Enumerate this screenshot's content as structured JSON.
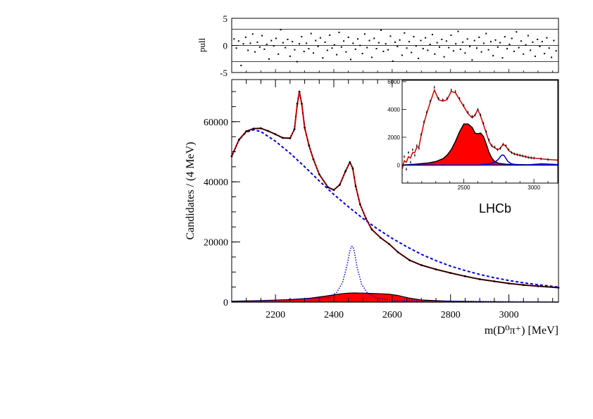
{
  "chart_data": [
    {
      "id": "main",
      "type": "line",
      "xlabel": "m(D⁰π⁺) [MeV]",
      "ylabel": "Candidates / (4 MeV)",
      "xlim": [
        2050,
        3170
      ],
      "ylim": [
        0,
        74000
      ],
      "xticks": [
        2200,
        2400,
        2600,
        2800,
        3000
      ],
      "yticks": [
        0,
        20000,
        40000,
        60000
      ],
      "annotation": "LHCb",
      "colors": {
        "total": "#cc0000",
        "background": "#0000dd",
        "resonance": "#0000cc",
        "broad_fill": "#ff0000",
        "data": "#000000"
      },
      "series": [
        {
          "role": "data",
          "style": "points",
          "x": [
            2050,
            2075,
            2100,
            2125,
            2150,
            2175,
            2200,
            2225,
            2250,
            2265,
            2275,
            2282,
            2290,
            2300,
            2315,
            2330,
            2350,
            2380,
            2400,
            2420,
            2440,
            2455,
            2465,
            2475,
            2490,
            2510,
            2530,
            2560,
            2590,
            2620,
            2660,
            2700,
            2750,
            2800,
            2850,
            2900,
            2950,
            3000,
            3050,
            3100,
            3170
          ],
          "y": [
            48500,
            54000,
            56800,
            57700,
            57800,
            56900,
            55800,
            54600,
            54500,
            57500,
            66000,
            70000,
            66000,
            58000,
            52000,
            47500,
            42500,
            38200,
            37300,
            39000,
            43500,
            46500,
            44500,
            38500,
            32500,
            27800,
            24200,
            21400,
            19300,
            16600,
            13900,
            12300,
            10900,
            9700,
            8600,
            7600,
            6900,
            6200,
            5700,
            5300,
            4800
          ]
        },
        {
          "role": "total_fit",
          "style": "solid",
          "x": [
            2050,
            2075,
            2100,
            2125,
            2150,
            2175,
            2200,
            2225,
            2250,
            2265,
            2275,
            2282,
            2290,
            2300,
            2315,
            2330,
            2350,
            2380,
            2400,
            2420,
            2440,
            2455,
            2465,
            2475,
            2490,
            2510,
            2530,
            2560,
            2590,
            2620,
            2660,
            2700,
            2750,
            2800,
            2850,
            2900,
            2950,
            3000,
            3050,
            3100,
            3170
          ],
          "y": [
            48500,
            54000,
            56800,
            57700,
            57800,
            56900,
            55800,
            54600,
            54500,
            57500,
            66000,
            70000,
            66000,
            58000,
            52000,
            47500,
            42500,
            38200,
            37300,
            39000,
            43500,
            46500,
            44500,
            38500,
            32500,
            27800,
            24200,
            21400,
            19300,
            16600,
            13900,
            12300,
            10900,
            9700,
            8600,
            7600,
            6900,
            6200,
            5700,
            5300,
            4800
          ]
        },
        {
          "role": "background",
          "style": "dashed",
          "x": [
            2050,
            2075,
            2100,
            2125,
            2150,
            2200,
            2250,
            2300,
            2350,
            2400,
            2450,
            2500,
            2550,
            2600,
            2650,
            2700,
            2750,
            2800,
            2850,
            2900,
            2950,
            3000,
            3050,
            3100,
            3170
          ],
          "y": [
            48500,
            54000,
            56500,
            57300,
            56700,
            53500,
            49500,
            45000,
            40300,
            35800,
            31700,
            27800,
            24300,
            21200,
            18400,
            15900,
            13800,
            12000,
            10500,
            9200,
            8100,
            7200,
            6400,
            5800,
            5000
          ]
        },
        {
          "role": "narrow_resonance",
          "style": "dotted",
          "x": [
            2050,
            2380,
            2410,
            2430,
            2445,
            2455,
            2460,
            2465,
            2470,
            2480,
            2495,
            2515,
            2545,
            2600,
            3170
          ],
          "y": [
            0,
            1500,
            3200,
            6500,
            12000,
            17000,
            18500,
            18500,
            17000,
            11500,
            6000,
            3000,
            1400,
            500,
            0
          ]
        },
        {
          "role": "broad_component",
          "style": "filled",
          "x": [
            2050,
            2150,
            2250,
            2320,
            2380,
            2420,
            2450,
            2470,
            2500,
            2550,
            2590,
            2620,
            2660,
            2700,
            2800,
            2900,
            3000,
            3170
          ],
          "y": [
            300,
            500,
            800,
            1300,
            2100,
            2700,
            3000,
            3050,
            3000,
            2800,
            2650,
            2200,
            1300,
            700,
            300,
            150,
            80,
            40
          ]
        }
      ]
    },
    {
      "id": "pull",
      "type": "scatter",
      "ylabel": "pull",
      "xlim": [
        2050,
        3170
      ],
      "ylim": [
        -5,
        5
      ],
      "yticks": [
        -5,
        0,
        5
      ],
      "reference_lines": [
        -3,
        0,
        3
      ],
      "x": [
        2058,
        2066,
        2074,
        2082,
        2090,
        2098,
        2106,
        2114,
        2122,
        2130,
        2138,
        2146,
        2154,
        2162,
        2170,
        2178,
        2186,
        2194,
        2202,
        2210,
        2218,
        2226,
        2234,
        2242,
        2250,
        2258,
        2266,
        2274,
        2282,
        2290,
        2298,
        2306,
        2314,
        2322,
        2330,
        2338,
        2346,
        2354,
        2362,
        2370,
        2378,
        2386,
        2394,
        2402,
        2410,
        2418,
        2426,
        2434,
        2442,
        2450,
        2458,
        2466,
        2474,
        2482,
        2490,
        2498,
        2506,
        2514,
        2522,
        2530,
        2538,
        2546,
        2554,
        2562,
        2570,
        2578,
        2586,
        2594,
        2602,
        2610,
        2618,
        2626,
        2634,
        2642,
        2650,
        2658,
        2666,
        2674,
        2682,
        2690,
        2698,
        2706,
        2714,
        2722,
        2730,
        2738,
        2746,
        2754,
        2762,
        2770,
        2778,
        2786,
        2794,
        2802,
        2810,
        2818,
        2826,
        2834,
        2842,
        2850,
        2858,
        2866,
        2874,
        2882,
        2890,
        2898,
        2906,
        2914,
        2922,
        2930,
        2938,
        2946,
        2954,
        2962,
        2970,
        2978,
        2986,
        2994,
        3002,
        3010,
        3018,
        3026,
        3034,
        3042,
        3050,
        3058,
        3066,
        3074,
        3082,
        3090,
        3098,
        3106,
        3114,
        3122,
        3130,
        3138,
        3146,
        3154,
        3162
      ],
      "y": [
        1.2,
        -0.5,
        0.8,
        -3.7,
        0.3,
        1.5,
        -0.9,
        0.4,
        2.1,
        -1.2,
        0.6,
        -0.3,
        1.8,
        -0.7,
        0.2,
        -2.5,
        0.9,
        -0.1,
        1.3,
        -1.6,
        2.9,
        0.5,
        -0.4,
        1.1,
        -2.0,
        0.7,
        -0.8,
        -3.0,
        0.3,
        1.6,
        -1.1,
        0.4,
        -0.6,
        2.2,
        -1.4,
        0.9,
        -0.2,
        1.4,
        -2.3,
        0.6,
        -0.9,
        1.9,
        -0.5,
        0.1,
        -1.7,
        2.4,
        -0.3,
        0.8,
        -1.2,
        1.5,
        -2.6,
        0.4,
        -0.7,
        1.2,
        0.0,
        -1.5,
        2.1,
        -0.4,
        0.9,
        -2.2,
        1.3,
        -0.6,
        0.5,
        2.8,
        -1.1,
        0.3,
        -0.8,
        1.7,
        -2.9,
        0.6,
        -0.2,
        1.0,
        -1.8,
        2.3,
        -0.5,
        0.7,
        -1.3,
        1.6,
        -0.1,
        -2.4,
        0.9,
        -0.6,
        1.4,
        -0.9,
        0.2,
        2.0,
        -1.6,
        0.5,
        -0.3,
        1.1,
        -2.1,
        0.8,
        -0.4,
        1.9,
        -1.0,
        0.3,
        2.6,
        -0.7,
        0.6,
        -1.4,
        1.2,
        -0.2,
        -2.7,
        0.9,
        -0.5,
        1.5,
        -1.2,
        0.4,
        2.2,
        -0.8,
        0.7,
        -1.9,
        1.0,
        -0.3,
        0.5,
        -2.3,
        1.6,
        -0.6,
        0.2,
        1.3,
        -1.1,
        2.5,
        -0.4,
        0.8,
        -1.6,
        0.1,
        1.8,
        -0.9,
        0.6,
        -2.0,
        1.1,
        -0.2,
        0.7,
        -1.5,
        1.4,
        -0.5,
        -2.2,
        0.9,
        -1.0
      ]
    },
    {
      "id": "inset",
      "type": "line",
      "xlim": [
        2060,
        3170
      ],
      "ylim": [
        -1300,
        6100
      ],
      "xticks": [
        2500,
        3000
      ],
      "yticks": [
        0,
        2000,
        4000,
        6000
      ],
      "series": [
        {
          "role": "data",
          "style": "points",
          "x": [
            2060,
            2075,
            2090,
            2105,
            2120,
            2135,
            2150,
            2165,
            2180,
            2195,
            2215,
            2235,
            2260,
            2290,
            2320,
            2350,
            2380,
            2410,
            2440,
            2470,
            2500,
            2530,
            2560,
            2580,
            2600,
            2620,
            2640,
            2660,
            2680,
            2700,
            2720,
            2740,
            2760,
            2780,
            2800,
            2820,
            2840,
            2860,
            2880,
            2900,
            2920,
            2940,
            2960,
            2980,
            3000,
            3050,
            3100,
            3170
          ],
          "y": [
            -700,
            600,
            -300,
            900,
            200,
            1100,
            700,
            1400,
            1200,
            2200,
            3100,
            3800,
            4600,
            5600,
            4800,
            4700,
            4800,
            5400,
            5300,
            4800,
            4300,
            3800,
            3500,
            3600,
            4000,
            3600,
            3000,
            2400,
            1800,
            1400,
            1300,
            1100,
            1200,
            1500,
            1400,
            1100,
            900,
            800,
            750,
            700,
            650,
            600,
            550,
            520,
            500,
            450,
            400,
            350
          ]
        },
        {
          "role": "total_fit",
          "style": "solid",
          "x": [
            2060,
            2075,
            2090,
            2105,
            2120,
            2135,
            2150,
            2165,
            2180,
            2195,
            2215,
            2235,
            2260,
            2290,
            2320,
            2350,
            2380,
            2410,
            2440,
            2470,
            2500,
            2530,
            2560,
            2580,
            2600,
            2620,
            2640,
            2660,
            2680,
            2700,
            2720,
            2740,
            2760,
            2780,
            2800,
            2820,
            2840,
            2860,
            2880,
            2900,
            2920,
            2940,
            2960,
            2980,
            3000,
            3050,
            3100,
            3170
          ],
          "y": [
            -300,
            300,
            200,
            600,
            500,
            900,
            900,
            1300,
            1300,
            2100,
            3000,
            3700,
            4500,
            5400,
            4700,
            4600,
            4700,
            5300,
            5200,
            4700,
            4200,
            3700,
            3400,
            3600,
            4000,
            3500,
            2900,
            2300,
            1700,
            1350,
            1250,
            1100,
            1200,
            1500,
            1350,
            1050,
            900,
            800,
            750,
            700,
            650,
            600,
            550,
            520,
            500,
            450,
            400,
            350
          ]
        },
        {
          "role": "broad_component",
          "style": "filled",
          "x": [
            2060,
            2150,
            2250,
            2300,
            2350,
            2380,
            2410,
            2440,
            2470,
            2500,
            2530,
            2560,
            2580,
            2600,
            2620,
            2640,
            2660,
            2680,
            2700,
            2720,
            2750,
            2800,
            2900,
            3000,
            3170
          ],
          "y": [
            0,
            60,
            150,
            250,
            450,
            700,
            1100,
            1700,
            2400,
            2950,
            2950,
            2700,
            2300,
            2250,
            2300,
            2050,
            1500,
            900,
            500,
            250,
            120,
            60,
            30,
            15,
            5
          ]
        },
        {
          "role": "narrow_resonance",
          "style": "solid",
          "x": [
            2060,
            2600,
            2680,
            2720,
            2745,
            2760,
            2770,
            2780,
            2790,
            2800,
            2815,
            2840,
            2880,
            2950,
            3000,
            3050,
            3100,
            3170
          ],
          "y": [
            0,
            0,
            80,
            200,
            400,
            600,
            700,
            720,
            650,
            480,
            250,
            90,
            20,
            10,
            50,
            90,
            70,
            40
          ]
        }
      ]
    }
  ]
}
